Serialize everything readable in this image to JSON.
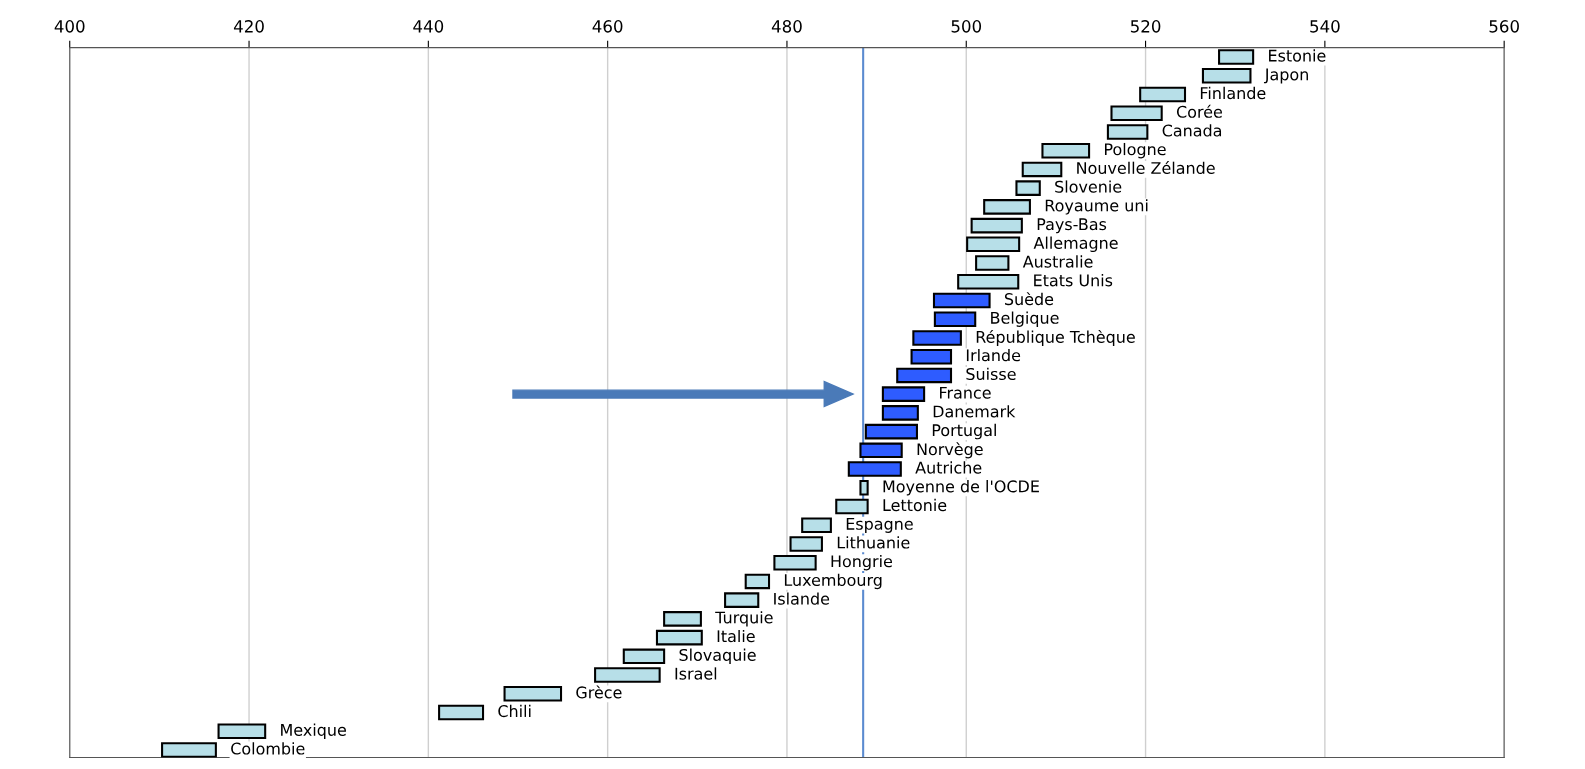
{
  "chart_data": {
    "type": "bar",
    "orientation": "horizontal",
    "categories": [
      "Estonie",
      "Japon",
      "Finlande",
      "Corée",
      "Canada",
      "Pologne",
      "Nouvelle Zélande",
      "Slovenie",
      "Royaume uni",
      "Pays-Bas",
      "Allemagne",
      "Australie",
      "Etats Unis",
      "Suède",
      "Belgique",
      "République Tchèque",
      "Irlande",
      "Suisse",
      "France",
      "Danemark",
      "Portugal",
      "Norvège",
      "Autriche",
      "Moyenne de l'OCDE",
      "Lettonie",
      "Espagne",
      "Lithuanie",
      "Hongrie",
      "Luxembourg",
      "Islande",
      "Turquie",
      "Italie",
      "Slovaquie",
      "Israel",
      "Grèce",
      "Chili",
      "Mexique",
      "Colombie"
    ],
    "base": [
      528.2,
      526.4,
      519.4,
      516.2,
      515.8,
      508.5,
      506.3,
      505.6,
      502.0,
      500.6,
      500.1,
      501.1,
      499.1,
      496.4,
      496.5,
      494.1,
      493.9,
      492.3,
      490.7,
      490.7,
      488.8,
      488.2,
      486.9,
      488.2,
      485.5,
      481.7,
      480.4,
      478.6,
      475.4,
      473.1,
      466.3,
      465.5,
      461.8,
      458.6,
      448.5,
      441.2,
      416.6,
      410.3
    ],
    "values": [
      3.8,
      5.3,
      5.0,
      5.6,
      4.4,
      5.2,
      4.3,
      2.6,
      5.1,
      5.6,
      5.8,
      3.6,
      6.7,
      6.2,
      4.5,
      5.3,
      4.4,
      6.0,
      4.6,
      3.9,
      5.7,
      4.6,
      5.8,
      0.8,
      3.5,
      3.2,
      3.5,
      4.6,
      2.6,
      3.7,
      4.1,
      5.0,
      4.5,
      7.2,
      6.3,
      4.9,
      5.2,
      6.0
    ],
    "colors": [
      "#b7dfe8",
      "#b7dfe8",
      "#b7dfe8",
      "#b7dfe8",
      "#b7dfe8",
      "#b7dfe8",
      "#b7dfe8",
      "#b7dfe8",
      "#b7dfe8",
      "#b7dfe8",
      "#b7dfe8",
      "#b7dfe8",
      "#b7dfe8",
      "#2e5cff",
      "#2e5cff",
      "#2e5cff",
      "#2e5cff",
      "#2e5cff",
      "#2e5cff",
      "#2e5cff",
      "#2e5cff",
      "#2e5cff",
      "#2e5cff",
      "#b7dfe8",
      "#b7dfe8",
      "#b7dfe8",
      "#b7dfe8",
      "#b7dfe8",
      "#b7dfe8",
      "#b7dfe8",
      "#b7dfe8",
      "#b7dfe8",
      "#b7dfe8",
      "#b7dfe8",
      "#b7dfe8",
      "#b7dfe8",
      "#b7dfe8",
      "#b7dfe8"
    ],
    "xlim": [
      400,
      560
    ],
    "xticks": [
      400,
      420,
      440,
      460,
      480,
      500,
      520,
      540,
      560
    ],
    "grid": "x",
    "ref_lines": [
      {
        "axis": "x",
        "value": 488.5,
        "color": "#5b8bd0"
      }
    ]
  }
}
